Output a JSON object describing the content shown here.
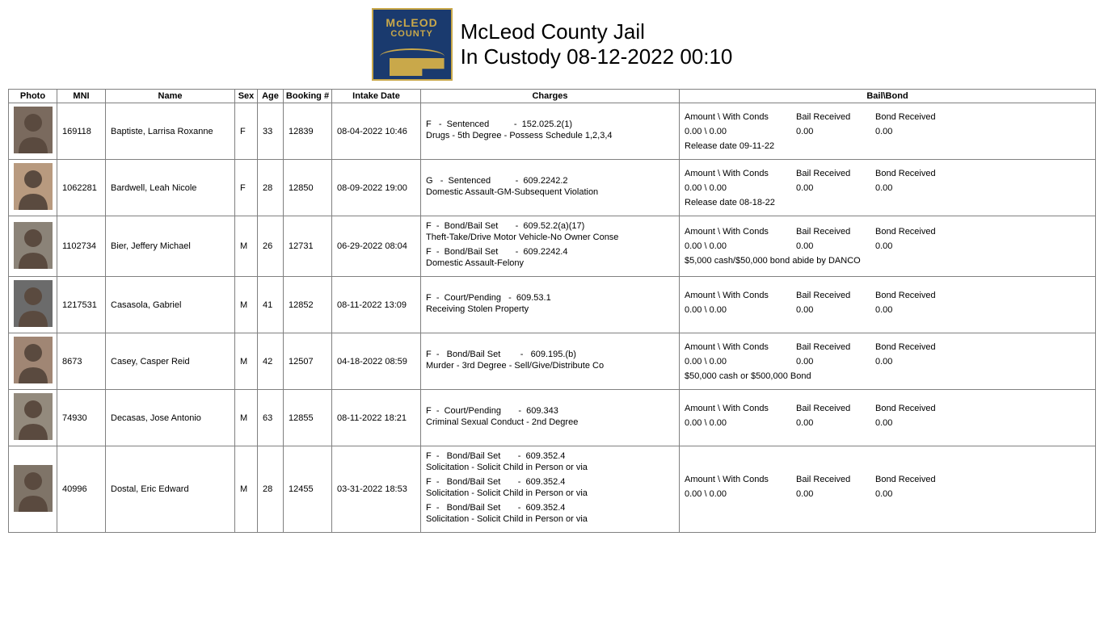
{
  "header": {
    "logo_top": "McLEOD",
    "logo_bottom": "COUNTY",
    "title_line1": "McLeod County Jail",
    "title_line2": "In Custody 08-12-2022 00:10"
  },
  "columns": [
    "Photo",
    "MNI",
    "Name",
    "Sex",
    "Age",
    "Booking #",
    "Intake Date",
    "Charges",
    "Bail\\Bond"
  ],
  "bail_labels": {
    "amount": "Amount \\ With Conds",
    "received": "Bail Received",
    "bond": "Bond Received",
    "release_prefix": "Release date "
  },
  "mugshot_palette": [
    "#7a6a5e",
    "#b89a7f",
    "#8b8378",
    "#6b6b6b",
    "#a08674",
    "#938a7d",
    "#7f7468"
  ],
  "rows": [
    {
      "mni": "169118",
      "name": "Baptiste, Larrisa Roxanne",
      "sex": "F",
      "age": "33",
      "booking": "12839",
      "intake": "08-04-2022 10:46",
      "charges": [
        {
          "line": "F   -  Sentenced          -  152.025.2(1)",
          "desc": "Drugs - 5th Degree - Possess Schedule 1,2,3,4"
        }
      ],
      "bail": {
        "amount": "0.00  \\  0.00",
        "received": "0.00",
        "bond": "0.00",
        "note": "Release date 09-11-22"
      }
    },
    {
      "mni": "1062281",
      "name": "Bardwell, Leah Nicole",
      "sex": "F",
      "age": "28",
      "booking": "12850",
      "intake": "08-09-2022 19:00",
      "charges": [
        {
          "line": "G   -  Sentenced          -  609.2242.2",
          "desc": "Domestic Assault-GM-Subsequent Violation"
        }
      ],
      "bail": {
        "amount": "0.00  \\  0.00",
        "received": "0.00",
        "bond": "0.00",
        "note": "Release date 08-18-22"
      }
    },
    {
      "mni": "1102734",
      "name": "Bier, Jeffery Michael",
      "sex": "M",
      "age": "26",
      "booking": "12731",
      "intake": "06-29-2022 08:04",
      "charges": [
        {
          "line": "F  -  Bond/Bail Set       -  609.52.2(a)(17)",
          "desc": "Theft-Take/Drive Motor Vehicle-No Owner Conse"
        },
        {
          "line": "F  -  Bond/Bail Set       -  609.2242.4",
          "desc": "Domestic Assault-Felony"
        }
      ],
      "bail": {
        "amount": "0.00  \\  0.00",
        "received": "0.00",
        "bond": "0.00",
        "note": "$5,000 cash/$50,000 bond abide by DANCO"
      }
    },
    {
      "mni": "1217531",
      "name": "Casasola, Gabriel",
      "sex": "M",
      "age": "41",
      "booking": "12852",
      "intake": "08-11-2022 13:09",
      "charges": [
        {
          "line": "F  -  Court/Pending   -  609.53.1",
          "desc": "Receiving Stolen Property"
        }
      ],
      "bail": {
        "amount": "0.00  \\  0.00",
        "received": "0.00",
        "bond": "0.00",
        "note": ""
      }
    },
    {
      "mni": "8673",
      "name": "Casey, Casper Reid",
      "sex": "M",
      "age": "42",
      "booking": "12507",
      "intake": "04-18-2022 08:59",
      "charges": [
        {
          "line": "F  -   Bond/Bail Set        -   609.195.(b)",
          "desc": "Murder - 3rd Degree - Sell/Give/Distribute Co"
        }
      ],
      "bail": {
        "amount": "0.00  \\  0.00",
        "received": "0.00",
        "bond": "0.00",
        "note": "$50,000 cash or $500,000 Bond"
      }
    },
    {
      "mni": "74930",
      "name": "Decasas, Jose Antonio",
      "sex": "M",
      "age": "63",
      "booking": "12855",
      "intake": "08-11-2022 18:21",
      "charges": [
        {
          "line": "F  -  Court/Pending       -  609.343",
          "desc": "Criminal Sexual Conduct - 2nd Degree"
        }
      ],
      "bail": {
        "amount": "0.00  \\  0.00",
        "received": "0.00",
        "bond": "0.00",
        "note": ""
      }
    },
    {
      "mni": "40996",
      "name": "Dostal, Eric Edward",
      "sex": "M",
      "age": "28",
      "booking": "12455",
      "intake": "03-31-2022 18:53",
      "charges": [
        {
          "line": "F  -   Bond/Bail Set       -  609.352.4",
          "desc": "Solicitation - Solicit Child in Person or via"
        },
        {
          "line": "F  -   Bond/Bail Set       -  609.352.4",
          "desc": "Solicitation - Solicit Child in Person or via"
        },
        {
          "line": "F  -   Bond/Bail Set       -  609.352.4",
          "desc": "Solicitation - Solicit Child in Person or via"
        }
      ],
      "bail": {
        "amount": "0.00  \\  0.00",
        "received": "0.00",
        "bond": "0.00",
        "note": ""
      }
    }
  ]
}
